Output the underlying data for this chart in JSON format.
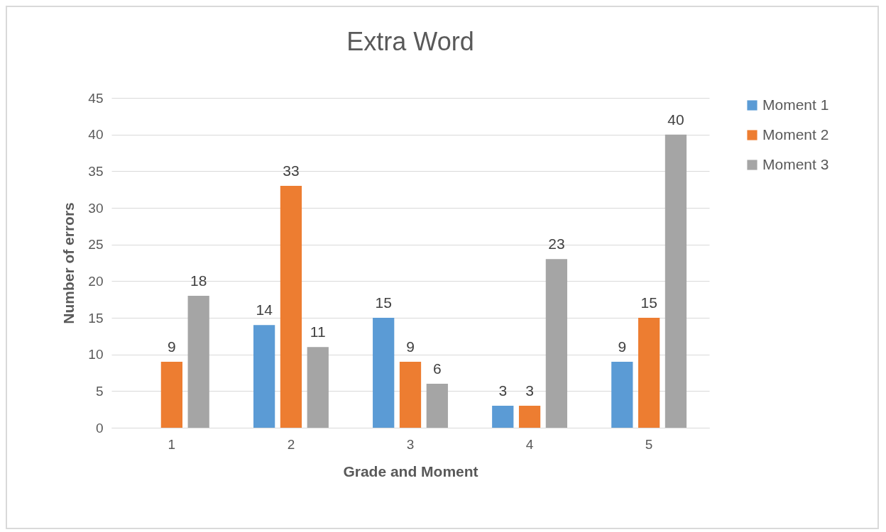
{
  "chart_data": {
    "type": "bar",
    "title": "Extra Word",
    "xlabel": "Grade and Moment",
    "ylabel": "Number of errors",
    "categories": [
      "1",
      "2",
      "3",
      "4",
      "5"
    ],
    "series": [
      {
        "name": "Moment 1",
        "color": "#5b9bd5",
        "values": [
          null,
          14,
          15,
          3,
          9
        ]
      },
      {
        "name": "Moment 2",
        "color": "#ed7d31",
        "values": [
          9,
          33,
          9,
          3,
          15
        ]
      },
      {
        "name": "Moment 3",
        "color": "#a5a5a5",
        "values": [
          18,
          11,
          6,
          23,
          40
        ]
      }
    ],
    "ylim": [
      0,
      45
    ],
    "yticks": [
      0,
      5,
      10,
      15,
      20,
      25,
      30,
      35,
      40,
      45
    ],
    "grid": "y",
    "legend": "right",
    "data_labels": true
  }
}
